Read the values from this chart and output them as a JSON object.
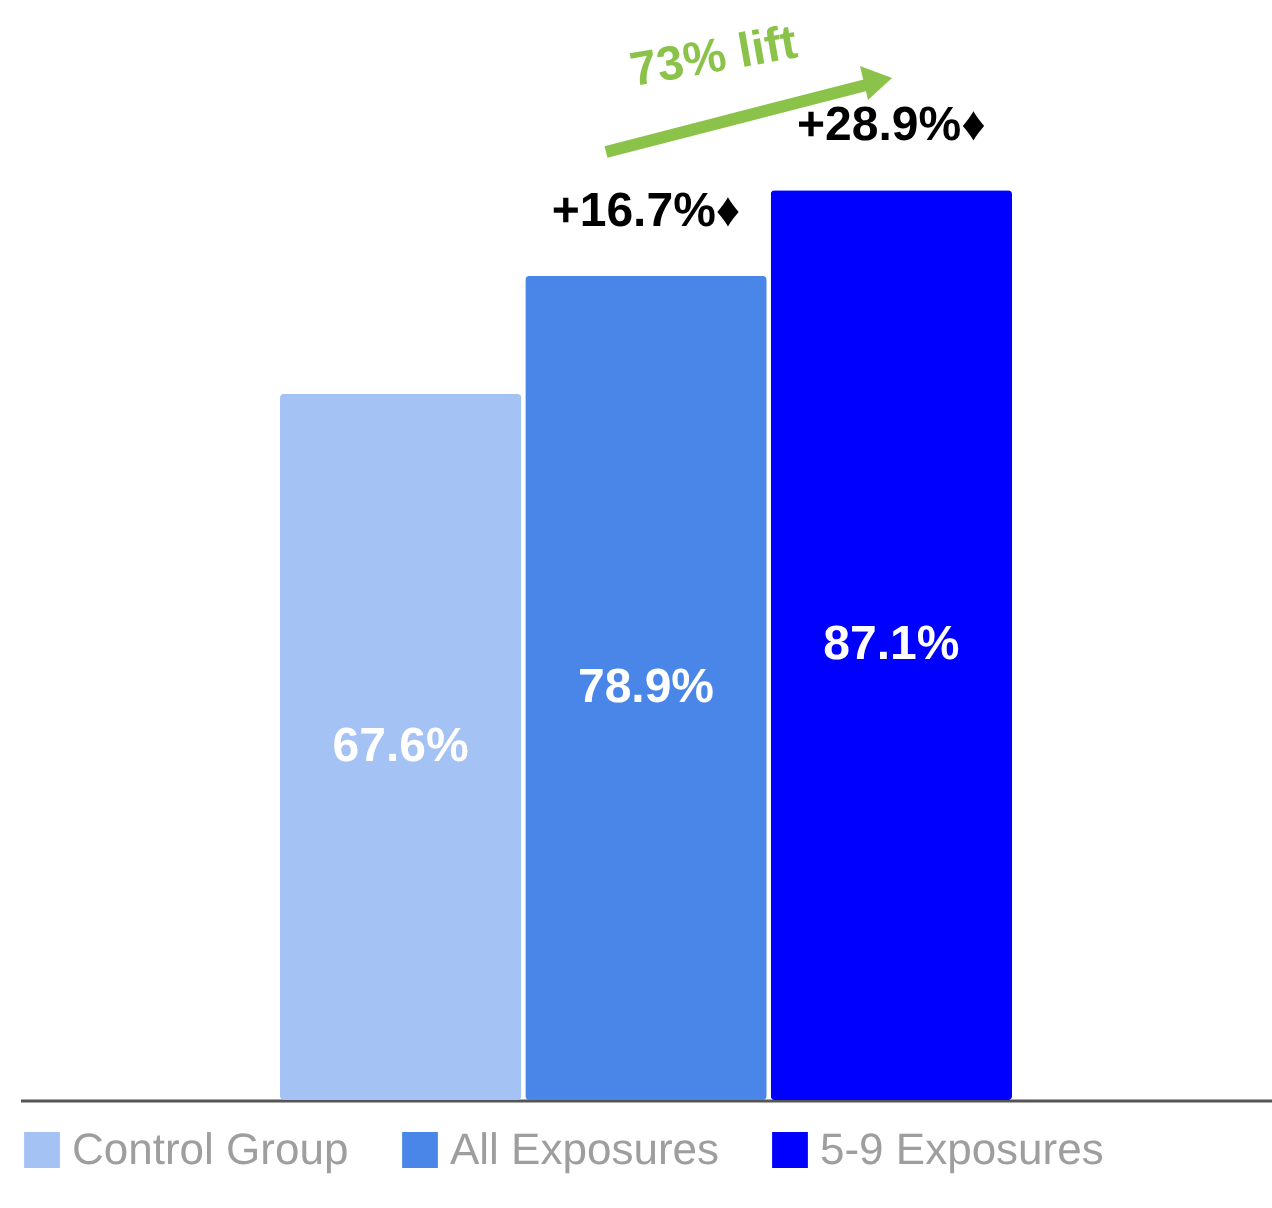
{
  "chart_data": {
    "type": "bar",
    "categories": [
      null
    ],
    "series": [
      {
        "name": "Control Group",
        "color": "#a4c2f4",
        "values": [
          67.6
        ],
        "value_labels": [
          "67.6%"
        ]
      },
      {
        "name": "All Exposures",
        "color": "#4a86e8",
        "values": [
          78.9
        ],
        "value_labels": [
          "78.9%"
        ]
      },
      {
        "name": "5-9 Exposures",
        "color": "#0000ff",
        "values": [
          87.1
        ],
        "value_labels": [
          "87.1%"
        ]
      }
    ],
    "legend": "bottom",
    "annotations": [
      "+16.7%♦",
      "+28.9%♦",
      "73% lift"
    ]
  }
}
